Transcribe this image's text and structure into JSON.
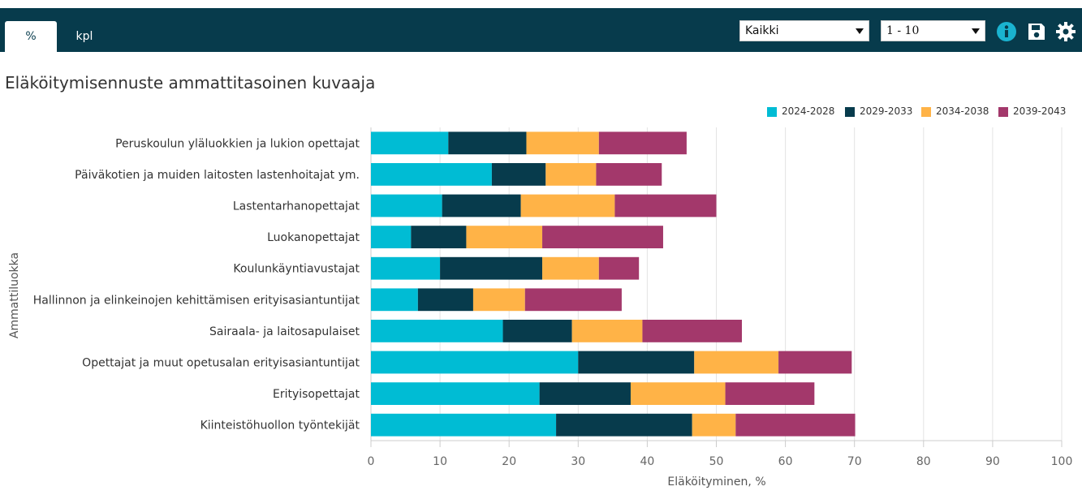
{
  "tabs": [
    {
      "label": "%"
    },
    {
      "label": "kpl"
    }
  ],
  "controls": {
    "region_select": "Kaikki",
    "range_select": "1 - 10"
  },
  "icons": [
    "info-icon",
    "save-icon",
    "gear-icon"
  ],
  "colors": {
    "topbar": "#073b4c",
    "info": "#1ab3d0"
  },
  "chart_data": {
    "type": "bar",
    "orientation": "horizontal",
    "stacked": true,
    "title": "Eläköitymisennuste ammattitasoinen kuvaaja",
    "xlabel": "Eläköityminen, %",
    "ylabel": "Ammattiluokka",
    "xlim": [
      0,
      100
    ],
    "xticks": [
      0,
      10,
      20,
      30,
      40,
      50,
      60,
      70,
      80,
      90,
      100
    ],
    "grid": "vertical",
    "legend_position": "top-right",
    "categories": [
      "Peruskoulun yläluokkien ja lukion opettajat",
      "Päiväkotien ja muiden laitosten lastenhoitajat ym.",
      "Lastentarhanopettajat",
      "Luokanopettajat",
      "Koulunkäyntiavustajat",
      "Hallinnon ja elinkeinojen kehittämisen erityisasiantuntijat",
      "Sairaala- ja laitosapulaiset",
      "Opettajat ja muut opetusalan erityisasiantuntijat",
      "Erityisopettajat",
      "Kiinteistöhuollon työntekijät"
    ],
    "series": [
      {
        "name": "2024-2028",
        "color": "#00bcd4",
        "values": [
          11.2,
          17.5,
          10.3,
          5.8,
          10.0,
          6.8,
          19.1,
          30.0,
          24.4,
          26.8
        ]
      },
      {
        "name": "2029-2033",
        "color": "#073b4c",
        "values": [
          11.3,
          7.8,
          11.4,
          8.0,
          14.8,
          8.0,
          10.0,
          16.8,
          13.2,
          19.7
        ]
      },
      {
        "name": "2034-2038",
        "color": "#ffb347",
        "values": [
          10.5,
          7.3,
          13.6,
          11.0,
          8.2,
          7.5,
          10.2,
          12.2,
          13.7,
          6.3
        ]
      },
      {
        "name": "2039-2043",
        "color": "#a3386b",
        "values": [
          12.7,
          9.5,
          14.7,
          17.5,
          5.8,
          14.0,
          14.4,
          10.6,
          12.9,
          17.3
        ]
      }
    ]
  }
}
